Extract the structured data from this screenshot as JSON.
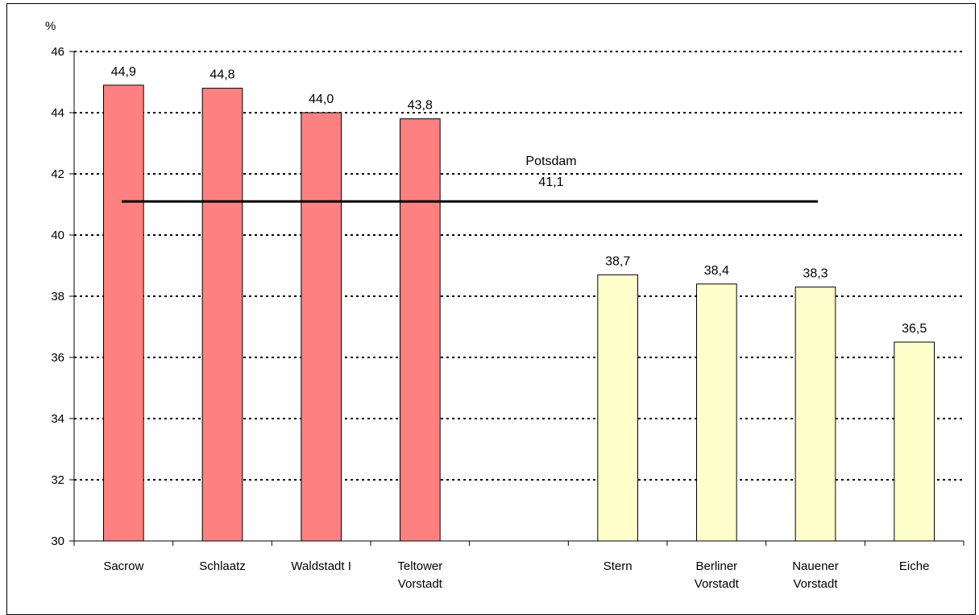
{
  "chart_data": {
    "type": "bar",
    "ylabel": "%",
    "ylim": [
      30,
      46
    ],
    "yticks": [
      "30",
      "32",
      "34",
      "36",
      "38",
      "40",
      "42",
      "44",
      "46"
    ],
    "grid": true,
    "categories": [
      [
        "Sacrow"
      ],
      [
        "Schlaatz"
      ],
      [
        "Waldstadt I"
      ],
      [
        "Teltower",
        "Vorstadt"
      ],
      [],
      [
        "Stern"
      ],
      [
        "Berliner",
        "Vorstadt"
      ],
      [
        "Nauener",
        "Vorstadt"
      ],
      [
        "Eiche"
      ]
    ],
    "values": [
      44.9,
      44.8,
      44.0,
      43.8,
      null,
      38.7,
      38.4,
      38.3,
      36.5
    ],
    "value_labels": [
      "44,9",
      "44,8",
      "44,0",
      "43,8",
      "",
      "38,7",
      "38,4",
      "38,3",
      "36,5"
    ],
    "bar_colors": [
      "#ff8080",
      "#ff8080",
      "#ff8080",
      "#ff8080",
      "",
      "#ffffcc",
      "#ffffcc",
      "#ffffcc",
      "#ffffcc"
    ],
    "reference_line": {
      "name": "Potsdam",
      "value": 41.1,
      "value_label": "41,1"
    }
  }
}
